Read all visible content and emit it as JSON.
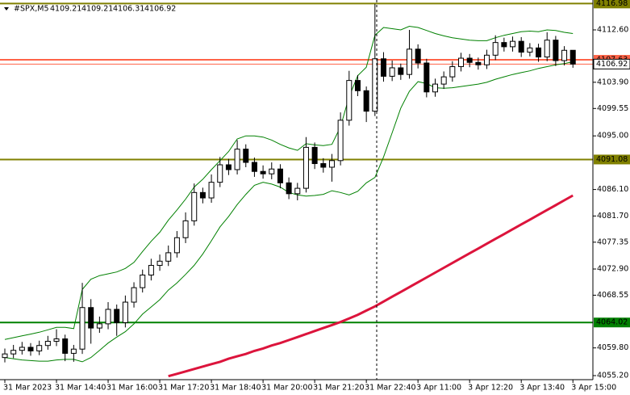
{
  "chart_data": {
    "type": "candlestick",
    "title": "#SPX,M5",
    "categories": [
      "31 Mar 2023",
      null,
      null,
      null,
      null,
      null,
      "31 Mar 14:40",
      null,
      null,
      null,
      null,
      null,
      "31 Mar 16:00",
      null,
      null,
      null,
      null,
      null,
      "31 Mar 17:20",
      null,
      null,
      null,
      null,
      null,
      "31 Mar 18:40",
      null,
      null,
      null,
      null,
      null,
      "31 Mar 20:00",
      null,
      null,
      null,
      null,
      null,
      "31 Mar 21:20",
      null,
      null,
      null,
      null,
      null,
      "31 Mar 22:40",
      null,
      null,
      null,
      null,
      null,
      "3 Apr 11:00",
      null,
      null,
      null,
      null,
      null,
      "3 Apr 12:20",
      null,
      null,
      null,
      null,
      null,
      "3 Apr 13:40",
      null,
      null,
      null,
      null,
      null,
      "3 Apr 15:00"
    ],
    "open": [
      4058.2,
      4058.8,
      4059.4,
      4059.9,
      4059.3,
      4060.2,
      4060.9,
      4061.3,
      4058.9,
      4059.6,
      4066.5,
      4063.1,
      4063.8,
      4066.2,
      4064.0,
      4067.4,
      4069.8,
      4071.9,
      4073.5,
      4074.2,
      4075.6,
      4078.1,
      4080.9,
      4085.6,
      4084.7,
      4087.3,
      4090.2,
      4089.4,
      4092.8,
      4090.6,
      4089.1,
      4088.7,
      4089.5,
      4087.2,
      4085.4,
      4086.3,
      4093.1,
      4090.4,
      4089.8,
      4090.9,
      4097.6,
      4104.2,
      4102.5,
      4099.1,
      4107.8,
      4104.9,
      4106.3,
      4105.2,
      4109.4,
      4107.1,
      4102.3,
      4103.6,
      4104.8,
      4106.5,
      4107.9,
      4107.2,
      4106.8,
      4108.4,
      4110.5,
      4109.8,
      4110.7,
      4108.9,
      4109.6,
      4108.1,
      4110.9,
      4107.5,
      4109.21
    ],
    "high": [
      4059.7,
      4060.3,
      4060.8,
      4060.6,
      4061.0,
      4061.8,
      4062.9,
      4062.0,
      4060.3,
      4070.6,
      4067.9,
      4065.0,
      4067.4,
      4067.0,
      4068.5,
      4070.7,
      4072.8,
      4074.6,
      4075.3,
      4076.8,
      4079.2,
      4082.3,
      4087.1,
      4086.4,
      4088.6,
      4091.5,
      4091.2,
      4094.3,
      4093.6,
      4091.4,
      4090.1,
      4090.6,
      4090.3,
      4088.1,
      4087.2,
      4094.8,
      4093.9,
      4091.3,
      4092.0,
      4098.9,
      4105.8,
      4105.1,
      4103.2,
      4116.9,
      4108.9,
      4107.5,
      4107.0,
      4112.6,
      4110.2,
      4107.8,
      4104.5,
      4105.7,
      4107.4,
      4108.8,
      4108.6,
      4108.0,
      4109.3,
      4111.7,
      4111.3,
      4111.5,
      4111.4,
      4110.4,
      4110.3,
      4112.2,
      4111.6,
      4109.9,
      4109.21
    ],
    "low": [
      4057.4,
      4058.1,
      4058.7,
      4058.5,
      4058.6,
      4059.5,
      4060.1,
      4057.6,
      4057.5,
      4058.8,
      4060.5,
      4062.3,
      4062.9,
      4061.8,
      4063.2,
      4066.5,
      4069.0,
      4071.0,
      4072.6,
      4073.4,
      4074.8,
      4077.2,
      4080.1,
      4083.8,
      4083.9,
      4086.5,
      4088.5,
      4088.6,
      4089.8,
      4088.2,
      4087.9,
      4087.8,
      4086.3,
      4084.5,
      4084.3,
      4085.6,
      4089.5,
      4088.9,
      4087.4,
      4090.1,
      4096.7,
      4101.6,
      4097.3,
      4098.3,
      4104.0,
      4104.1,
      4104.3,
      4104.5,
      4106.2,
      4101.4,
      4101.5,
      4102.8,
      4104.0,
      4105.7,
      4106.4,
      4106.0,
      4106.1,
      4107.6,
      4109.0,
      4109.0,
      4108.1,
      4108.2,
      4107.3,
      4107.4,
      4106.6,
      4106.7,
      4106.31
    ],
    "close": [
      4058.8,
      4059.4,
      4059.9,
      4059.3,
      4060.2,
      4060.9,
      4061.3,
      4058.9,
      4059.6,
      4066.5,
      4063.1,
      4063.8,
      4066.2,
      4064.0,
      4067.4,
      4069.8,
      4071.9,
      4073.5,
      4074.2,
      4075.6,
      4078.1,
      4080.9,
      4085.6,
      4084.7,
      4087.3,
      4090.2,
      4089.4,
      4092.8,
      4090.6,
      4089.1,
      4088.7,
      4089.5,
      4087.2,
      4085.4,
      4086.3,
      4093.1,
      4090.4,
      4089.8,
      4090.9,
      4097.6,
      4104.2,
      4102.5,
      4099.1,
      4107.8,
      4104.9,
      4106.3,
      4105.2,
      4109.4,
      4107.1,
      4102.3,
      4103.6,
      4104.8,
      4106.5,
      4107.9,
      4107.2,
      4106.8,
      4108.4,
      4110.5,
      4109.8,
      4110.7,
      4108.9,
      4109.6,
      4108.1,
      4110.9,
      4107.5,
      4109.21,
      4106.92
    ],
    "up_color": "#ffffff",
    "down_color": "#000000",
    "overlays": [
      {
        "color": "#008000",
        "width": 1,
        "values": [
          4061.2,
          4061.5,
          4061.8,
          4062.1,
          4062.4,
          4062.8,
          4063.2,
          4063.2,
          4063.0,
          4069.5,
          4071.2,
          4071.8,
          4072.1,
          4072.4,
          4073.0,
          4074.0,
          4075.8,
          4077.5,
          4079.0,
          4081.0,
          4082.7,
          4084.5,
          4086.5,
          4087.8,
          4089.4,
          4090.9,
          4092.4,
          4094.5,
          4095.0,
          4095.0,
          4094.8,
          4094.3,
          4093.6,
          4093.0,
          4092.6,
          4093.7,
          4093.5,
          4093.4,
          4093.6,
          4096.5,
          4101.5,
          4105.0,
          4106.4,
          4111.7,
          4113.0,
          4112.8,
          4112.6,
          4113.2,
          4113.0,
          4112.5,
          4112.0,
          4111.6,
          4111.3,
          4111.1,
          4110.9,
          4110.8,
          4110.8,
          4111.3,
          4111.7,
          4112.0,
          4112.3,
          4112.4,
          4112.3,
          4112.6,
          4112.5,
          4112.2,
          4112.0
        ]
      },
      {
        "color": "#008000",
        "width": 1,
        "values": [
          4058.2,
          4058.0,
          4057.8,
          4057.7,
          4057.6,
          4057.6,
          4057.8,
          4057.9,
          4057.9,
          4057.5,
          4058.2,
          4059.4,
          4060.6,
          4061.6,
          4062.5,
          4063.8,
          4065.4,
          4066.6,
          4067.8,
          4069.4,
          4070.6,
          4072.0,
          4073.5,
          4075.4,
          4077.6,
          4079.9,
          4081.6,
          4083.6,
          4085.3,
          4086.8,
          4087.3,
          4087.0,
          4086.5,
          4085.6,
          4085.2,
          4085.0,
          4085.1,
          4085.3,
          4085.9,
          4085.6,
          4085.2,
          4085.8,
          4087.2,
          4088.1,
          4091.5,
          4095.5,
          4099.6,
          4102.4,
          4104.0,
          4103.7,
          4103.0,
          4102.9,
          4103.0,
          4103.2,
          4103.4,
          4103.6,
          4103.9,
          4104.4,
          4104.8,
          4105.2,
          4105.5,
          4105.8,
          4106.2,
          4106.5,
          4106.8,
          4107.0,
          4107.3
        ]
      },
      {
        "color": "#dc143c",
        "width": 3,
        "values": [
          null,
          null,
          null,
          null,
          null,
          null,
          null,
          null,
          null,
          null,
          null,
          null,
          null,
          null,
          null,
          null,
          null,
          null,
          null,
          4055.1,
          4055.5,
          4055.9,
          4056.3,
          4056.7,
          4057.1,
          4057.5,
          4058.0,
          4058.4,
          4058.8,
          4059.3,
          4059.7,
          4060.2,
          4060.6,
          4061.1,
          4061.6,
          4062.1,
          4062.6,
          4063.1,
          4063.6,
          4064.1,
          4064.7,
          4065.3,
          4066.0,
          4066.7,
          4067.5,
          4068.3,
          4069.1,
          4069.9,
          4070.7,
          4071.5,
          4072.3,
          4073.1,
          4073.9,
          4074.7,
          4075.5,
          4076.3,
          4077.1,
          4077.9,
          4078.7,
          4079.5,
          4080.3,
          4081.1,
          4081.9,
          4082.7,
          4083.5,
          4084.3,
          4085.1
        ]
      }
    ],
    "levels": [
      {
        "value": 4116.98,
        "color": "#808000"
      },
      {
        "value": 4107.63,
        "color": "#ff6347"
      },
      {
        "value": 4091.08,
        "color": "#808000"
      },
      {
        "value": 4064.02,
        "color": "#008000"
      }
    ],
    "ylim": [
      4054.53,
      4117.56
    ],
    "yticks": [
      {
        "value": 4112.6,
        "label": "4112.60"
      },
      {
        "value": 4103.9,
        "label": "4103.90"
      },
      {
        "value": 4099.55,
        "label": "4099.55"
      },
      {
        "value": 4095.0,
        "label": "4095.00"
      },
      {
        "value": 4086.1,
        "label": "4086.10"
      },
      {
        "value": 4081.7,
        "label": "4081.70"
      },
      {
        "value": 4077.35,
        "label": "4077.35"
      },
      {
        "value": 4072.9,
        "label": "4072.90"
      },
      {
        "value": 4068.55,
        "label": "4068.55"
      },
      {
        "value": 4059.8,
        "label": "4059.80"
      },
      {
        "value": 4055.2,
        "label": "4055.20"
      }
    ]
  }
}
